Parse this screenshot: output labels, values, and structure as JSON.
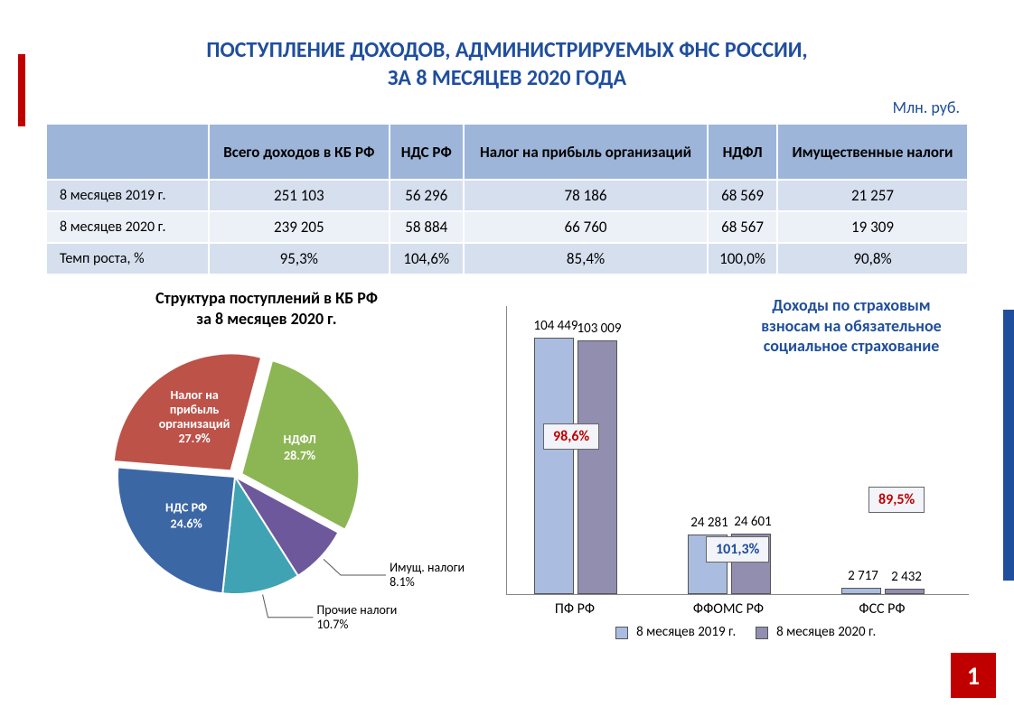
{
  "title_line1": "ПОСТУПЛЕНИЕ ДОХОДОВ, АДМИНИСТРИРУЕМЫХ ФНС РОССИИ,",
  "title_line2": "ЗА 8 МЕСЯЦЕВ 2020 ГОДА",
  "unit": "Млн. руб.",
  "page_number": "1",
  "colors": {
    "primary_blue": "#1f4e9c",
    "accent_red": "#c00000",
    "table_header": "#9db5d9",
    "table_row_a": "#d6dfee",
    "table_row_b": "#ecf0f7",
    "bar_2019": "#aabce0",
    "bar_2020": "#928eb0"
  },
  "table": {
    "columns": [
      "",
      "Всего доходов в КБ РФ",
      "НДС РФ",
      "Налог на прибыль организаций",
      "НДФЛ",
      "Имущественные налоги"
    ],
    "rows": [
      {
        "label": "8 месяцев 2019 г.",
        "cells": [
          "251 103",
          "56 296",
          "78 186",
          "68 569",
          "21 257"
        ]
      },
      {
        "label": "8 месяцев 2020 г.",
        "cells": [
          "239 205",
          "58 884",
          "66 760",
          "68 567",
          "19 309"
        ]
      },
      {
        "label": "Темп роста, %",
        "cells": [
          "95,3%",
          "104,6%",
          "85,4%",
          "100,0%",
          "90,8%"
        ]
      }
    ]
  },
  "pie": {
    "title_line1": "Структура поступлений в КБ РФ",
    "title_line2": "за 8 месяцев 2020 г.",
    "slices": [
      {
        "label": "Налог на прибыль организаций",
        "pct_label": "27.9%",
        "value": 27.9,
        "color": "#bd5249"
      },
      {
        "label": "НДФЛ",
        "pct_label": "28.7%",
        "value": 28.7,
        "color": "#8bb653"
      },
      {
        "label": "Имущ. налоги",
        "pct_label": "8.1%",
        "value": 8.1,
        "color": "#6e589c"
      },
      {
        "label": "Прочие налоги",
        "pct_label": "10.7%",
        "value": 10.7,
        "color": "#3fa3b4"
      },
      {
        "label": "НДС РФ",
        "pct_label": "24.6%",
        "value": 24.6,
        "color": "#3c67a5"
      }
    ]
  },
  "bars": {
    "title": "Доходы по страховым взносам на обязательное социальное страхование",
    "ymax": 110000,
    "categories": [
      "ПФ РФ",
      "ФФОМС РФ",
      "ФСС РФ"
    ],
    "series": [
      {
        "name": "8 месяцев 2019 г.",
        "color": "#aabce0",
        "values": [
          104449,
          24281,
          2717
        ],
        "labels": [
          "104 449",
          "24 281",
          "2 717"
        ]
      },
      {
        "name": "8 месяцев 2020 г.",
        "color": "#928eb0",
        "values": [
          103009,
          24601,
          2432
        ],
        "labels": [
          "103 009",
          "24 601",
          "2 432"
        ]
      }
    ],
    "pct_boxes": [
      {
        "text": "98,6%",
        "cls": "red"
      },
      {
        "text": "101,3%",
        "cls": "blue"
      },
      {
        "text": "89,5%",
        "cls": "red"
      }
    ]
  }
}
